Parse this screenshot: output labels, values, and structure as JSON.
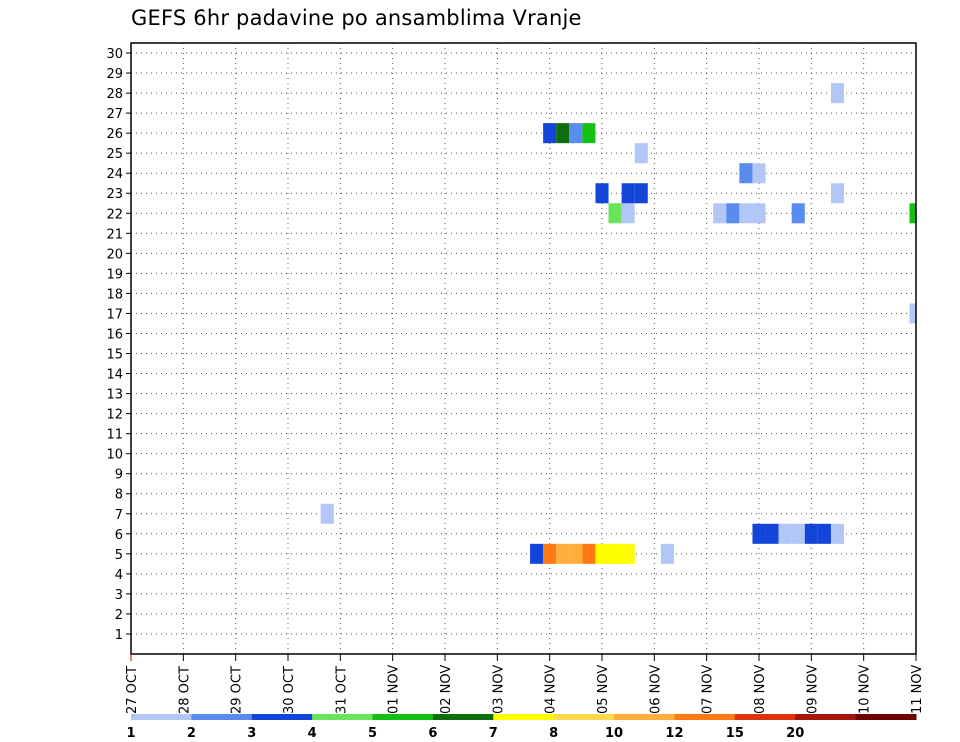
{
  "chart_data": {
    "type": "heatmap",
    "title": "GEFS 6hr padavine po ansamblima Vranje",
    "xlabel": "",
    "ylabel": "",
    "x_ticks": [
      "27 OCT",
      "28 OCT",
      "29 OCT",
      "30 OCT",
      "31 OCT",
      "01 NOV",
      "02 NOV",
      "03 NOV",
      "04 NOV",
      "05 NOV",
      "06 NOV",
      "07 NOV",
      "08 NOV",
      "09 NOV",
      "10 NOV",
      "11 NOV"
    ],
    "xlim": [
      0,
      60
    ],
    "y_ticks": [
      1,
      2,
      3,
      4,
      5,
      6,
      7,
      8,
      9,
      10,
      11,
      12,
      13,
      14,
      15,
      16,
      17,
      18,
      19,
      20,
      21,
      22,
      23,
      24,
      25,
      26,
      27,
      28,
      29,
      30
    ],
    "ylim": [
      0,
      30
    ],
    "grid": true,
    "x_unit": "6-hour step from 27 OCT 00Z",
    "levels": [
      1,
      2,
      3,
      4,
      5,
      6,
      7,
      8,
      10,
      12,
      15,
      20
    ],
    "colorbar_labels": [
      "1",
      "2",
      "3",
      "4",
      "5",
      "6",
      "7",
      "8",
      "10",
      "12",
      "15",
      "20"
    ],
    "colors": [
      "#b3c7f7",
      "#5a8cef",
      "#1346d8",
      "#6be35a",
      "#13c013",
      "#0d6e0d",
      "#ffff00",
      "#ffd94a",
      "#ffae3c",
      "#ff7a14",
      "#e0310d",
      "#a5150c",
      "#6e0000"
    ],
    "cells": [
      {
        "x": 15,
        "member": 7,
        "value": 1
      },
      {
        "x": 32,
        "member": 26,
        "value": 3
      },
      {
        "x": 33,
        "member": 26,
        "value": 6
      },
      {
        "x": 34,
        "member": 26,
        "value": 2
      },
      {
        "x": 35,
        "member": 26,
        "value": 5
      },
      {
        "x": 36,
        "member": 23,
        "value": 3
      },
      {
        "x": 37,
        "member": 22,
        "value": 4
      },
      {
        "x": 38,
        "member": 22,
        "value": 1
      },
      {
        "x": 38,
        "member": 23,
        "value": 3
      },
      {
        "x": 39,
        "member": 23,
        "value": 3
      },
      {
        "x": 39,
        "member": 25,
        "value": 1
      },
      {
        "x": 45,
        "member": 22,
        "value": 1
      },
      {
        "x": 46,
        "member": 22,
        "value": 2
      },
      {
        "x": 47,
        "member": 22,
        "value": 1
      },
      {
        "x": 48,
        "member": 22,
        "value": 1
      },
      {
        "x": 48,
        "member": 6,
        "value": 3
      },
      {
        "x": 49,
        "member": 6,
        "value": 3
      },
      {
        "x": 47,
        "member": 24,
        "value": 2
      },
      {
        "x": 48,
        "member": 24,
        "value": 1
      },
      {
        "x": 50,
        "member": 6,
        "value": 1
      },
      {
        "x": 51,
        "member": 6,
        "value": 1
      },
      {
        "x": 51,
        "member": 22,
        "value": 2
      },
      {
        "x": 52,
        "member": 6,
        "value": 3
      },
      {
        "x": 53,
        "member": 6,
        "value": 3
      },
      {
        "x": 54,
        "member": 6,
        "value": 1
      },
      {
        "x": 54,
        "member": 23,
        "value": 1
      },
      {
        "x": 54,
        "member": 28,
        "value": 1
      },
      {
        "x": 60,
        "member": 17,
        "value": 1
      },
      {
        "x": 60,
        "member": 22,
        "value": 5
      },
      {
        "x": 31,
        "member": 5,
        "value": 3
      },
      {
        "x": 32,
        "member": 5,
        "value": 12
      },
      {
        "x": 33,
        "member": 5,
        "value": 10
      },
      {
        "x": 34,
        "member": 5,
        "value": 10
      },
      {
        "x": 35,
        "member": 5,
        "value": 12
      },
      {
        "x": 36,
        "member": 5,
        "value": 7
      },
      {
        "x": 37,
        "member": 5,
        "value": 7
      },
      {
        "x": 38,
        "member": 5,
        "value": 7
      },
      {
        "x": 41,
        "member": 5,
        "value": 1
      }
    ]
  }
}
